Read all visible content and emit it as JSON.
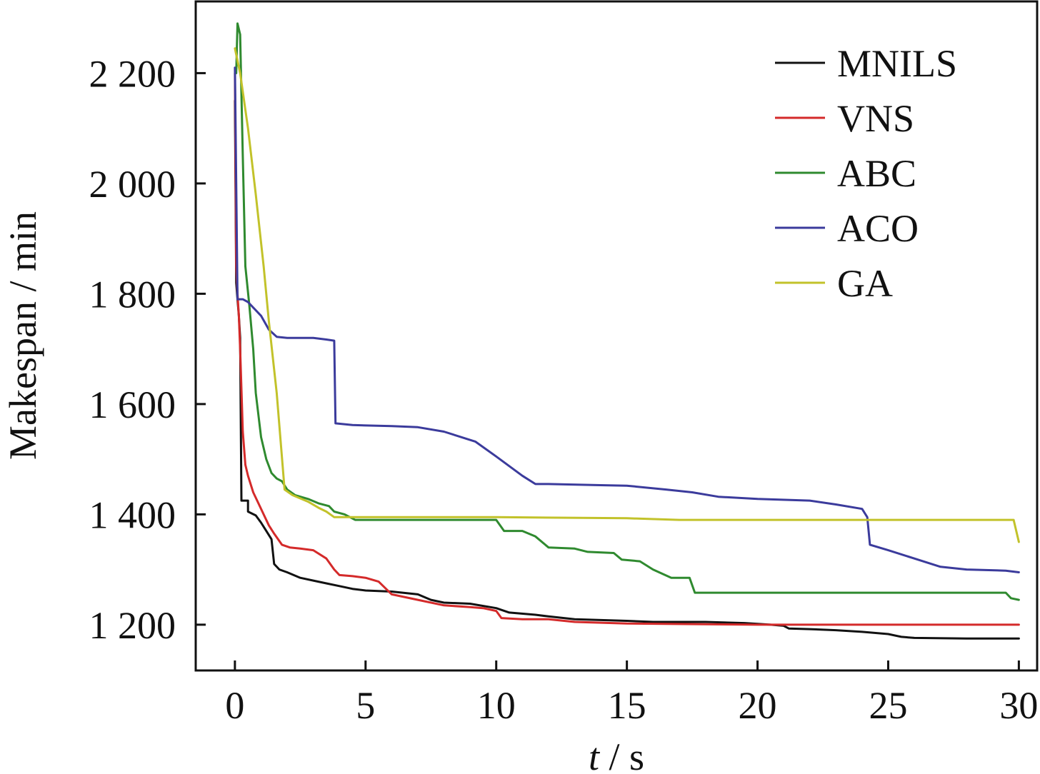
{
  "chart_data": {
    "type": "line",
    "title": "",
    "xlabel_italic": "t",
    "xlabel_rest": " / s",
    "ylabel": "Makespan / min",
    "xlim": [
      -1.5,
      30.7
    ],
    "ylim": [
      1117,
      2330
    ],
    "x_ticks": [
      0,
      5,
      10,
      15,
      20,
      25,
      30
    ],
    "x_tick_labels": [
      "0",
      "5",
      "10",
      "15",
      "20",
      "25",
      "30"
    ],
    "y_ticks": [
      1200,
      1400,
      1600,
      1800,
      2000,
      2200
    ],
    "y_tick_labels": [
      "1 200",
      "1 400",
      "1 600",
      "1 800",
      "2 000",
      "2 200"
    ],
    "grid": false,
    "legend_position": "top-right",
    "series": [
      {
        "name": "MNILS",
        "color": "#111111",
        "points": [
          [
            0,
            2150
          ],
          [
            0.05,
            1820
          ],
          [
            0.1,
            1790
          ],
          [
            0.15,
            1760
          ],
          [
            0.2,
            1720
          ],
          [
            0.25,
            1425
          ],
          [
            0.5,
            1425
          ],
          [
            0.5,
            1405
          ],
          [
            0.8,
            1398
          ],
          [
            1.0,
            1385
          ],
          [
            1.2,
            1370
          ],
          [
            1.4,
            1355
          ],
          [
            1.5,
            1310
          ],
          [
            1.7,
            1300
          ],
          [
            2.0,
            1295
          ],
          [
            2.5,
            1285
          ],
          [
            3.0,
            1280
          ],
          [
            3.5,
            1275
          ],
          [
            4.0,
            1270
          ],
          [
            4.5,
            1265
          ],
          [
            5.0,
            1262
          ],
          [
            6.0,
            1260
          ],
          [
            7.0,
            1255
          ],
          [
            7.5,
            1245
          ],
          [
            8.0,
            1240
          ],
          [
            9.0,
            1238
          ],
          [
            10.0,
            1230
          ],
          [
            10.5,
            1222
          ],
          [
            11.5,
            1218
          ],
          [
            12.0,
            1215
          ],
          [
            13.0,
            1210
          ],
          [
            15.0,
            1207
          ],
          [
            16.0,
            1205
          ],
          [
            18.0,
            1205
          ],
          [
            19.5,
            1203
          ],
          [
            20.5,
            1200
          ],
          [
            21.0,
            1198
          ],
          [
            21.2,
            1193
          ],
          [
            22.0,
            1192
          ],
          [
            23.0,
            1190
          ],
          [
            24.0,
            1187
          ],
          [
            25.0,
            1183
          ],
          [
            25.5,
            1178
          ],
          [
            26.0,
            1176
          ],
          [
            28.0,
            1175
          ],
          [
            30.0,
            1175
          ]
        ]
      },
      {
        "name": "VNS",
        "color": "#d42a2a",
        "points": [
          [
            0,
            2200
          ],
          [
            0.05,
            1850
          ],
          [
            0.1,
            1800
          ],
          [
            0.15,
            1760
          ],
          [
            0.2,
            1700
          ],
          [
            0.3,
            1550
          ],
          [
            0.4,
            1490
          ],
          [
            0.5,
            1470
          ],
          [
            0.7,
            1440
          ],
          [
            0.9,
            1420
          ],
          [
            1.1,
            1400
          ],
          [
            1.3,
            1380
          ],
          [
            1.5,
            1365
          ],
          [
            1.8,
            1345
          ],
          [
            2.1,
            1340
          ],
          [
            2.5,
            1338
          ],
          [
            3.0,
            1335
          ],
          [
            3.5,
            1320
          ],
          [
            3.8,
            1300
          ],
          [
            4.0,
            1290
          ],
          [
            4.5,
            1288
          ],
          [
            5.0,
            1285
          ],
          [
            5.5,
            1278
          ],
          [
            6.0,
            1255
          ],
          [
            7.0,
            1245
          ],
          [
            8.0,
            1235
          ],
          [
            9.0,
            1232
          ],
          [
            9.5,
            1230
          ],
          [
            10.0,
            1225
          ],
          [
            10.2,
            1212
          ],
          [
            11.0,
            1210
          ],
          [
            12.0,
            1210
          ],
          [
            13.0,
            1205
          ],
          [
            15.0,
            1202
          ],
          [
            20.0,
            1200
          ],
          [
            30.0,
            1200
          ]
        ]
      },
      {
        "name": "ABC",
        "color": "#2f8a2f",
        "points": [
          [
            0.05,
            2200
          ],
          [
            0.1,
            2290
          ],
          [
            0.2,
            2270
          ],
          [
            0.3,
            2050
          ],
          [
            0.4,
            1850
          ],
          [
            0.55,
            1780
          ],
          [
            0.7,
            1700
          ],
          [
            0.8,
            1620
          ],
          [
            1.0,
            1540
          ],
          [
            1.2,
            1500
          ],
          [
            1.4,
            1475
          ],
          [
            1.6,
            1465
          ],
          [
            1.8,
            1460
          ],
          [
            2.0,
            1445
          ],
          [
            2.3,
            1435
          ],
          [
            2.8,
            1428
          ],
          [
            3.2,
            1420
          ],
          [
            3.6,
            1415
          ],
          [
            3.8,
            1405
          ],
          [
            4.2,
            1400
          ],
          [
            4.6,
            1390
          ],
          [
            5.0,
            1390
          ],
          [
            7.0,
            1390
          ],
          [
            10.0,
            1390
          ],
          [
            10.3,
            1370
          ],
          [
            11.0,
            1370
          ],
          [
            11.5,
            1360
          ],
          [
            12.0,
            1340
          ],
          [
            13.0,
            1338
          ],
          [
            13.5,
            1332
          ],
          [
            14.5,
            1330
          ],
          [
            14.8,
            1318
          ],
          [
            15.5,
            1315
          ],
          [
            16.0,
            1300
          ],
          [
            16.7,
            1285
          ],
          [
            17.4,
            1285
          ],
          [
            17.6,
            1258
          ],
          [
            18.0,
            1258
          ],
          [
            20.0,
            1258
          ],
          [
            25.0,
            1258
          ],
          [
            29.5,
            1258
          ],
          [
            29.7,
            1248
          ],
          [
            30.0,
            1245
          ]
        ]
      },
      {
        "name": "ACO",
        "color": "#3b3b9c",
        "points": [
          [
            0,
            2210
          ],
          [
            0.1,
            1790
          ],
          [
            0.3,
            1790
          ],
          [
            0.5,
            1785
          ],
          [
            1.0,
            1760
          ],
          [
            1.3,
            1735
          ],
          [
            1.6,
            1722
          ],
          [
            2.0,
            1720
          ],
          [
            3.0,
            1720
          ],
          [
            3.5,
            1717
          ],
          [
            3.8,
            1715
          ],
          [
            3.85,
            1565
          ],
          [
            4.5,
            1562
          ],
          [
            6.0,
            1560
          ],
          [
            7.0,
            1558
          ],
          [
            8.0,
            1550
          ],
          [
            9.2,
            1532
          ],
          [
            10.0,
            1505
          ],
          [
            11.0,
            1470
          ],
          [
            11.5,
            1455
          ],
          [
            12.0,
            1455
          ],
          [
            14.0,
            1453
          ],
          [
            15.0,
            1452
          ],
          [
            16.5,
            1445
          ],
          [
            17.5,
            1440
          ],
          [
            18.5,
            1432
          ],
          [
            20.0,
            1428
          ],
          [
            22.0,
            1425
          ],
          [
            23.0,
            1418
          ],
          [
            24.0,
            1410
          ],
          [
            24.2,
            1395
          ],
          [
            24.3,
            1345
          ],
          [
            25.0,
            1335
          ],
          [
            26.0,
            1320
          ],
          [
            27.0,
            1305
          ],
          [
            28.0,
            1300
          ],
          [
            29.5,
            1298
          ],
          [
            30.0,
            1295
          ]
        ]
      },
      {
        "name": "GA",
        "color": "#c2c22a",
        "points": [
          [
            0,
            2245
          ],
          [
            0.2,
            2200
          ],
          [
            0.5,
            2100
          ],
          [
            0.8,
            1980
          ],
          [
            1.1,
            1850
          ],
          [
            1.3,
            1750
          ],
          [
            1.6,
            1620
          ],
          [
            1.9,
            1445
          ],
          [
            2.2,
            1435
          ],
          [
            2.8,
            1423
          ],
          [
            3.2,
            1412
          ],
          [
            3.5,
            1405
          ],
          [
            3.8,
            1395
          ],
          [
            4.5,
            1395
          ],
          [
            10.0,
            1395
          ],
          [
            15.0,
            1393
          ],
          [
            17.0,
            1390
          ],
          [
            20.0,
            1390
          ],
          [
            25.0,
            1390
          ],
          [
            29.8,
            1390
          ],
          [
            30.0,
            1350
          ]
        ]
      }
    ]
  }
}
